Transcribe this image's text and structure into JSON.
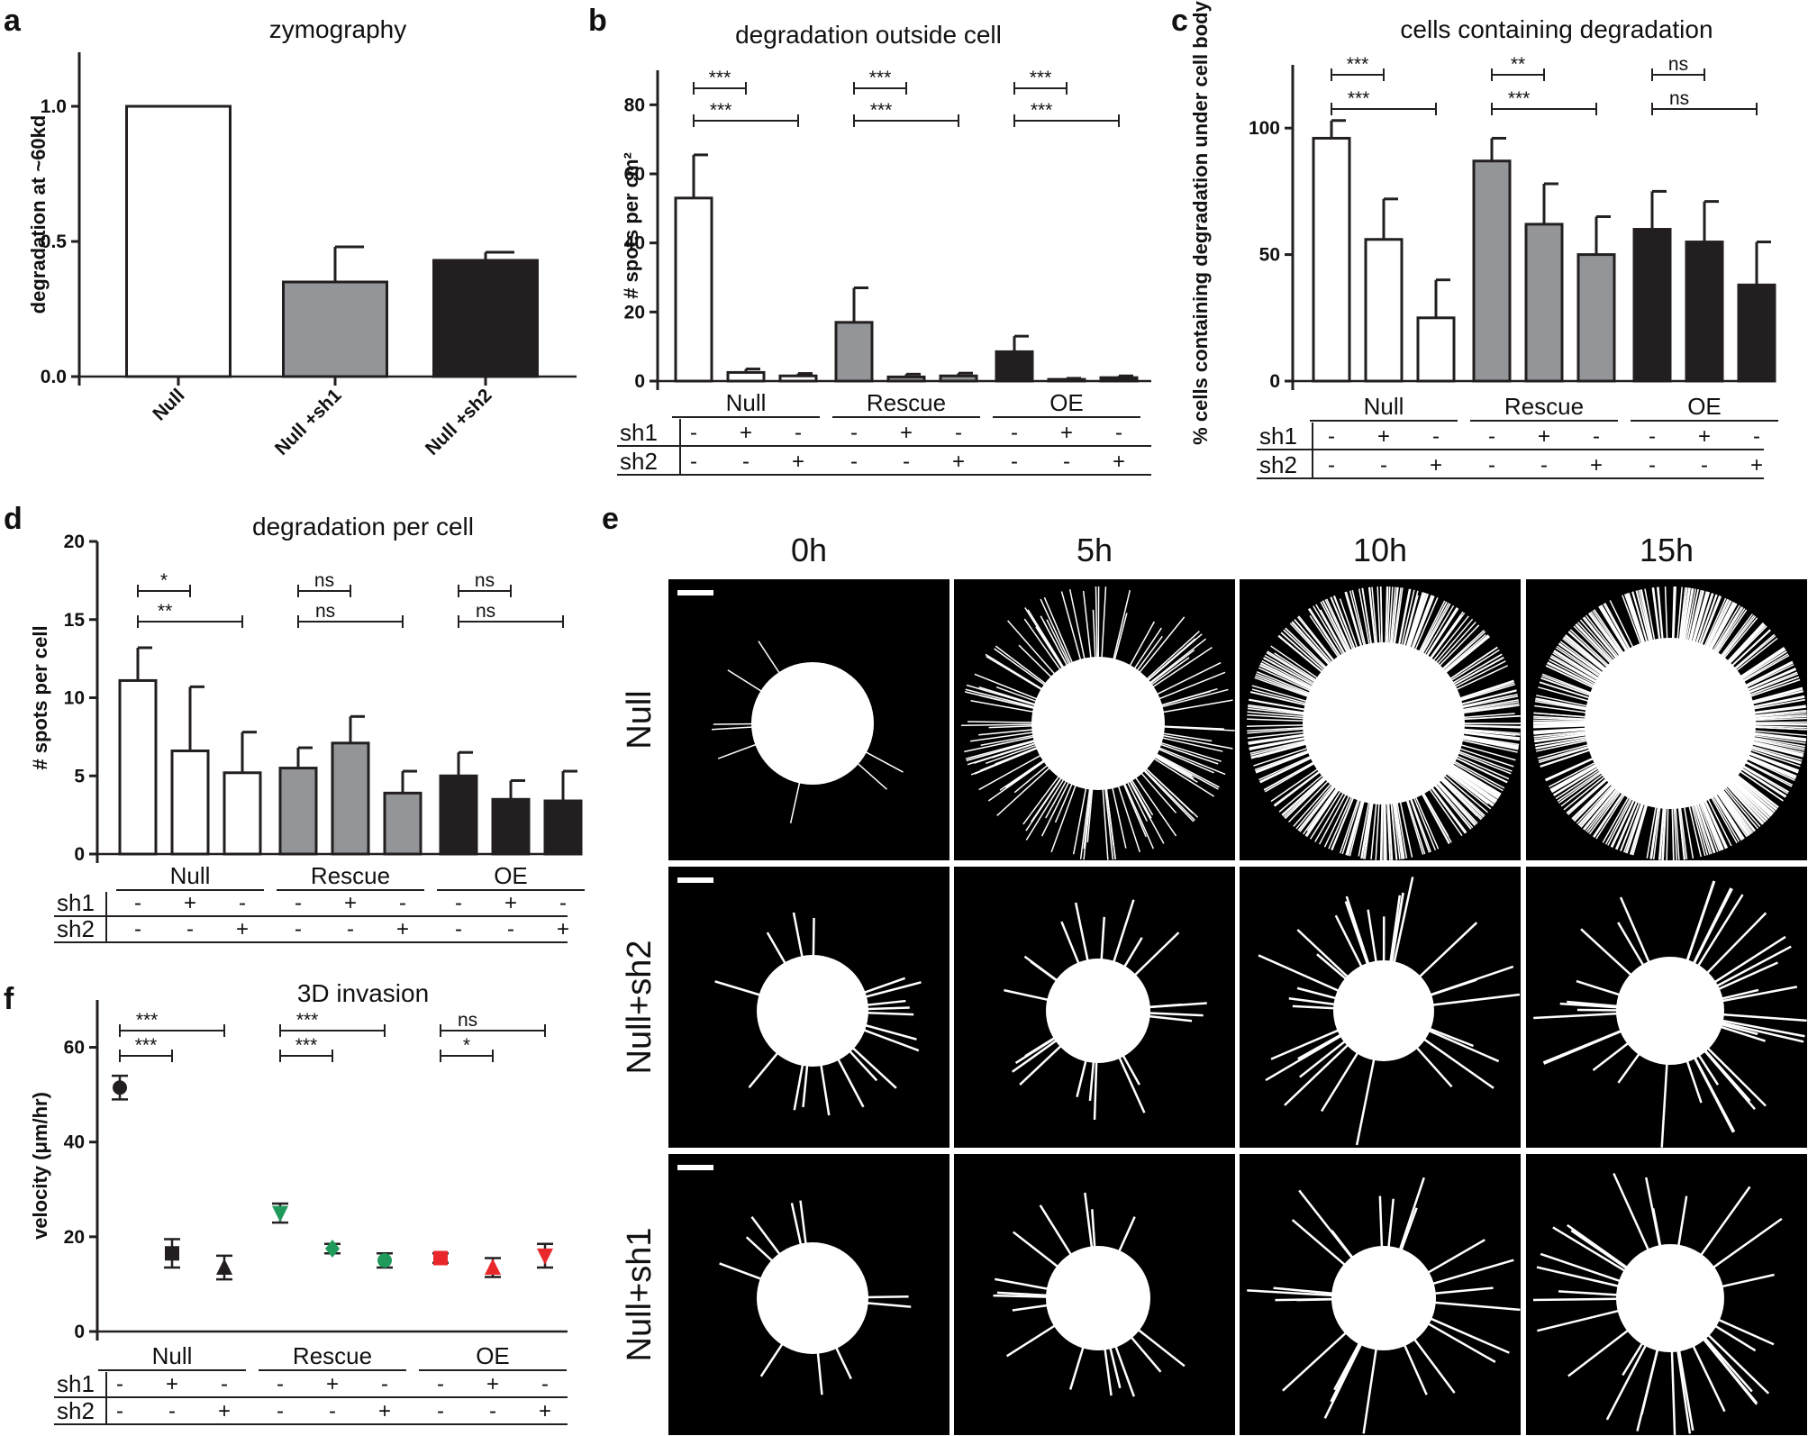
{
  "colors": {
    "null": "#ffffff",
    "rescue": "#939598",
    "oe": "#231f20",
    "outline": "#231f20",
    "rescue_marker": "#1f9a5b",
    "oe_marker": "#e8282b"
  },
  "chart_data": [
    {
      "panel": "a",
      "type": "bar",
      "title": "zymography",
      "ylabel": "degradation at ~60kd",
      "ylim": [
        0,
        1.2
      ],
      "yticks": [
        "0.0",
        "0.5",
        "1.0"
      ],
      "categories": [
        "Null",
        "Null +sh1",
        "Null +sh2"
      ],
      "values": [
        1.0,
        0.35,
        0.43
      ],
      "errors": [
        0,
        0.13,
        0.03
      ]
    },
    {
      "panel": "b",
      "type": "bar",
      "title": "degradation outside cell",
      "ylabel": "# spots per cm²",
      "ylim": [
        0,
        90
      ],
      "yticks": [
        "0",
        "20",
        "40",
        "60",
        "80"
      ],
      "groups": [
        "Null",
        "Rescue",
        "OE"
      ],
      "row_labels": [
        "sh1",
        "sh2"
      ],
      "sh1": [
        "-",
        "+",
        "-",
        "-",
        "+",
        "-",
        "-",
        "+",
        "-"
      ],
      "sh2": [
        "-",
        "-",
        "+",
        "-",
        "-",
        "+",
        "-",
        "-",
        "+"
      ],
      "values": [
        53,
        2.5,
        1.5,
        17,
        1.2,
        1.5,
        8.5,
        0.5,
        1
      ],
      "errors": [
        12.5,
        1,
        0.7,
        10,
        0.8,
        0.8,
        4.5,
        0.3,
        0.5
      ],
      "significance": [
        {
          "label": "***",
          "from": 0,
          "to": 1,
          "level": 0
        },
        {
          "label": "***",
          "from": 0,
          "to": 2,
          "level": 1
        },
        {
          "label": "***",
          "from": 3,
          "to": 4,
          "level": 0
        },
        {
          "label": "***",
          "from": 3,
          "to": 5,
          "level": 1
        },
        {
          "label": "***",
          "from": 6,
          "to": 7,
          "level": 0
        },
        {
          "label": "***",
          "from": 6,
          "to": 8,
          "level": 1
        }
      ]
    },
    {
      "panel": "c",
      "type": "bar",
      "title": "cells containing degradation",
      "ylabel": "% cells containing degradation under cell body",
      "ylim": [
        0,
        125
      ],
      "yticks": [
        "0",
        "50",
        "100"
      ],
      "groups": [
        "Null",
        "Rescue",
        "OE"
      ],
      "row_labels": [
        "sh1",
        "sh2"
      ],
      "sh1": [
        "-",
        "+",
        "-",
        "-",
        "+",
        "-",
        "-",
        "+",
        "-"
      ],
      "sh2": [
        "-",
        "-",
        "+",
        "-",
        "-",
        "+",
        "-",
        "-",
        "+"
      ],
      "values": [
        96,
        56,
        25,
        87,
        62,
        50,
        60,
        55,
        38
      ],
      "errors": [
        7,
        16,
        15,
        9,
        16,
        15,
        15,
        16,
        17
      ],
      "significance": [
        {
          "label": "***",
          "from": 0,
          "to": 1,
          "level": 0
        },
        {
          "label": "***",
          "from": 0,
          "to": 2,
          "level": 1
        },
        {
          "label": "**",
          "from": 3,
          "to": 4,
          "level": 0
        },
        {
          "label": "***",
          "from": 3,
          "to": 5,
          "level": 1
        },
        {
          "label": "ns",
          "from": 6,
          "to": 7,
          "level": 0
        },
        {
          "label": "ns",
          "from": 6,
          "to": 8,
          "level": 1
        }
      ]
    },
    {
      "panel": "d",
      "type": "bar",
      "title": "degradation per cell",
      "ylabel": "# spots per cell",
      "ylim": [
        0,
        20
      ],
      "yticks": [
        "0",
        "5",
        "10",
        "15",
        "20"
      ],
      "groups": [
        "Null",
        "Rescue",
        "OE"
      ],
      "row_labels": [
        "sh1",
        "sh2"
      ],
      "sh1": [
        "-",
        "+",
        "-",
        "-",
        "+",
        "-",
        "-",
        "+",
        "-"
      ],
      "sh2": [
        "-",
        "-",
        "+",
        "-",
        "-",
        "+",
        "-",
        "-",
        "+"
      ],
      "values": [
        11.1,
        6.6,
        5.2,
        5.5,
        7.1,
        3.9,
        5.0,
        3.5,
        3.4
      ],
      "errors": [
        2.1,
        4.1,
        2.6,
        1.3,
        1.7,
        1.4,
        1.5,
        1.2,
        1.9
      ],
      "significance": [
        {
          "label": "*",
          "from": 0,
          "to": 1,
          "level": 0
        },
        {
          "label": "**",
          "from": 0,
          "to": 2,
          "level": 1
        },
        {
          "label": "ns",
          "from": 3,
          "to": 4,
          "level": 0
        },
        {
          "label": "ns",
          "from": 3,
          "to": 5,
          "level": 1
        },
        {
          "label": "ns",
          "from": 6,
          "to": 7,
          "level": 0
        },
        {
          "label": "ns",
          "from": 6,
          "to": 8,
          "level": 1
        }
      ]
    },
    {
      "panel": "f",
      "type": "scatter",
      "title": "3D invasion",
      "ylabel": "velocity (μm/hr)",
      "ylim": [
        0,
        70
      ],
      "yticks": [
        "0",
        "20",
        "40",
        "60"
      ],
      "groups": [
        "Null",
        "Rescue",
        "OE"
      ],
      "row_labels": [
        "sh1",
        "sh2"
      ],
      "sh1": [
        "-",
        "+",
        "-",
        "-",
        "+",
        "-",
        "-",
        "+",
        "-"
      ],
      "sh2": [
        "-",
        "-",
        "+",
        "-",
        "-",
        "+",
        "-",
        "-",
        "+"
      ],
      "values": [
        51.5,
        16.5,
        13.5,
        25,
        17.5,
        15,
        15.5,
        13.5,
        16
      ],
      "errors": [
        2.5,
        3,
        2.5,
        2,
        1,
        1.5,
        1,
        2,
        2.5
      ],
      "markers": [
        "circle",
        "square",
        "triangle-up",
        "triangle-down",
        "diamond",
        "circle",
        "square",
        "triangle-up",
        "triangle-down"
      ],
      "significance": [
        {
          "label": "***",
          "from": 0,
          "to": 1,
          "level": 0
        },
        {
          "label": "***",
          "from": 0,
          "to": 2,
          "level": 1
        },
        {
          "label": "***",
          "from": 3,
          "to": 4,
          "level": 0
        },
        {
          "label": "***",
          "from": 3,
          "to": 5,
          "level": 1
        },
        {
          "label": "*",
          "from": 6,
          "to": 7,
          "level": 0
        },
        {
          "label": "ns",
          "from": 6,
          "to": 8,
          "level": 1
        }
      ]
    }
  ],
  "panel_e": {
    "timepoints": [
      "0h",
      "5h",
      "10h",
      "15h"
    ],
    "conditions": [
      "Null",
      "Null+sh2",
      "Null+sh1"
    ],
    "image_content": "spheroid invasion micrographs (white cells on black background) with scale bar"
  },
  "panel_labels": [
    "a",
    "b",
    "c",
    "d",
    "e",
    "f"
  ]
}
